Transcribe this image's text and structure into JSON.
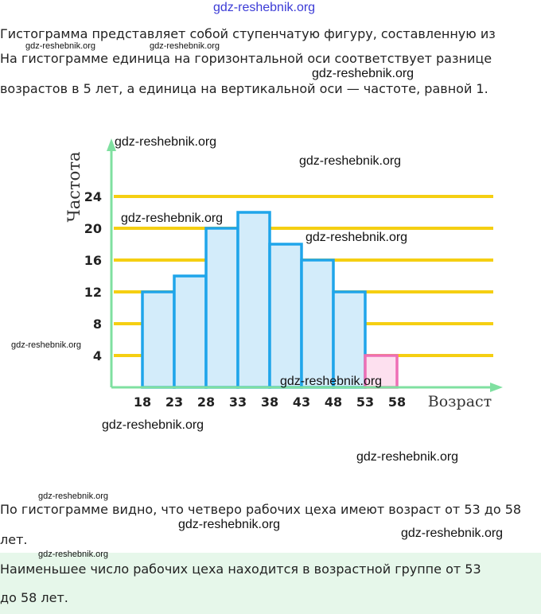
{
  "header_watermark": "gdz-reshebnik.org",
  "paragraphs": [
    "Гистограмма представляет собой ступенчатую фигуру, составленную из",
    "На гистограмме единица на горизонтальной оси соответствует разнице",
    "возрастов в 5 лет, а единица на вертикальной оси — частоте, равной 1."
  ],
  "conclusion": [
    "По гистограмме видно, что четверо рабочих цеха имеют возраст от 53 до 58",
    "лет."
  ],
  "answer": [
    "Наименьшее число рабочих цеха находится в возрастной группе от 53",
    "до 58 лет."
  ],
  "watermark": "gdz-reshebnik.org",
  "chart_data": {
    "type": "bar",
    "title": "",
    "xlabel": "Возраст",
    "ylabel": "Частота",
    "x_ticks": [
      18,
      23,
      28,
      33,
      38,
      43,
      48,
      53,
      58
    ],
    "y_ticks": [
      4,
      8,
      12,
      16,
      20,
      24
    ],
    "ylim": [
      0,
      24
    ],
    "bins": [
      {
        "from": 18,
        "to": 23,
        "value": 12
      },
      {
        "from": 23,
        "to": 28,
        "value": 14
      },
      {
        "from": 28,
        "to": 33,
        "value": 20
      },
      {
        "from": 33,
        "to": 38,
        "value": 22
      },
      {
        "from": 38,
        "to": 43,
        "value": 18
      },
      {
        "from": 43,
        "to": 48,
        "value": 16
      },
      {
        "from": 48,
        "to": 53,
        "value": 12
      },
      {
        "from": 53,
        "to": 58,
        "value": 4,
        "highlight": true
      }
    ],
    "colors": {
      "bar_fill": "#d3ecfa",
      "bar_stroke": "#1fa5ea",
      "highlight_fill": "#fde0ef",
      "highlight_stroke": "#ee6fb5",
      "grid": "#f5cf12",
      "axis": "#7fe0a0"
    }
  }
}
